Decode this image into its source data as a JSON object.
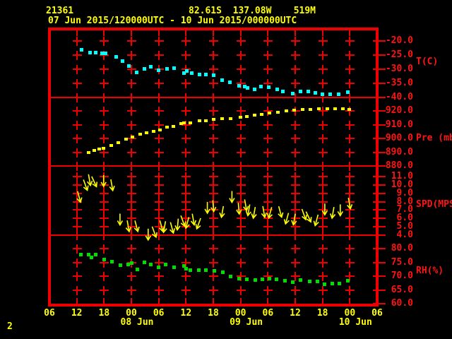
{
  "header": {
    "station_id": "21361",
    "location": "82.61S  137.08W    519M",
    "period": "07 Jun 2015/120000UTC - 10 Jun 2015/000000UTC"
  },
  "footer": {
    "page_char": "2"
  },
  "colors": {
    "background": "#000000",
    "frame_red": "#ee0000",
    "label_red": "#ff1414",
    "text_yellow": "#ffff00",
    "temperature_cyan": "#00ffff",
    "pressure_yellow": "#ffff00",
    "wind_yellow": "#ffff00",
    "humidity_green": "#00dd00"
  },
  "x_axis": {
    "hour_labels": [
      "06",
      "12",
      "18",
      "00",
      "06",
      "12",
      "18",
      "00",
      "06",
      "12",
      "18",
      "00",
      "06"
    ],
    "date_labels": [
      {
        "text": "08 Jun",
        "grid_index": 3
      },
      {
        "text": "09 Jun",
        "grid_index": 7
      },
      {
        "text": "10 Jun",
        "grid_index": 11
      }
    ],
    "range_hours": [
      0,
      72
    ],
    "start": "06UTC 07 Jun 2015",
    "end": "06UTC 10 Jun 2015"
  },
  "chart_data": [
    {
      "type": "scatter",
      "panel": "temperature",
      "ylabel": "T(C)",
      "tick_labels": [
        "-20.0",
        "-25.0",
        "-30.0",
        "-35.0",
        "-40.0"
      ],
      "tick_values": [
        -20,
        -25,
        -30,
        -35,
        -40
      ],
      "series": [
        {
          "name": "temperature_C",
          "marker": "square",
          "color": "#00ffff",
          "points": [
            [
              7.1,
              -23.0
            ],
            [
              8.9,
              -24.0
            ],
            [
              10.2,
              -24.0
            ],
            [
              11.6,
              -24.3
            ],
            [
              12.4,
              -24.3
            ],
            [
              14.7,
              -25.5
            ],
            [
              16.1,
              -27.0
            ],
            [
              17.5,
              -28.8
            ],
            [
              19.1,
              -31.0
            ],
            [
              20.9,
              -29.8
            ],
            [
              22.3,
              -29.1
            ],
            [
              23.9,
              -30.3
            ],
            [
              25.8,
              -29.8
            ],
            [
              27.4,
              -29.5
            ],
            [
              29.5,
              -31.3
            ],
            [
              30.2,
              -30.5
            ],
            [
              31.2,
              -31.3
            ],
            [
              32.9,
              -31.8
            ],
            [
              34.3,
              -31.8
            ],
            [
              36.0,
              -32.0
            ],
            [
              37.9,
              -33.8
            ],
            [
              39.7,
              -34.5
            ],
            [
              41.6,
              -35.9
            ],
            [
              42.9,
              -36.2
            ],
            [
              43.6,
              -36.6
            ],
            [
              45.0,
              -37.1
            ],
            [
              46.5,
              -36.1
            ],
            [
              48.2,
              -36.3
            ],
            [
              50.0,
              -37.1
            ],
            [
              51.3,
              -37.8
            ],
            [
              53.4,
              -38.6
            ],
            [
              55.2,
              -37.9
            ],
            [
              56.8,
              -37.9
            ],
            [
              58.4,
              -38.4
            ],
            [
              60.0,
              -38.8
            ],
            [
              61.7,
              -38.9
            ],
            [
              63.5,
              -38.8
            ],
            [
              65.5,
              -38.1
            ]
          ]
        }
      ]
    },
    {
      "type": "scatter",
      "panel": "pressure",
      "ylabel": "Pre (mb)",
      "tick_labels": [
        "920.0",
        "910.0",
        "900.0",
        "890.0",
        "880.0"
      ],
      "tick_values": [
        920,
        910,
        900,
        890,
        880
      ],
      "series": [
        {
          "name": "pressure_mb",
          "marker": "square",
          "color": "#ffff00",
          "points": [
            [
              8.6,
              889.9
            ],
            [
              9.9,
              891.3
            ],
            [
              11.0,
              892.2
            ],
            [
              11.9,
              892.7
            ],
            [
              13.5,
              894.7
            ],
            [
              15.1,
              896.8
            ],
            [
              16.8,
              899.7
            ],
            [
              18.2,
              900.8
            ],
            [
              19.9,
              903.3
            ],
            [
              21.3,
              904.3
            ],
            [
              22.9,
              905.2
            ],
            [
              24.3,
              906.3
            ],
            [
              25.8,
              908.0
            ],
            [
              27.3,
              908.8
            ],
            [
              28.9,
              910.7
            ],
            [
              29.6,
              911.3
            ],
            [
              30.9,
              911.3
            ],
            [
              33.0,
              912.7
            ],
            [
              34.4,
              913.0
            ],
            [
              36.0,
              913.9
            ],
            [
              38.0,
              914.5
            ],
            [
              39.8,
              914.6
            ],
            [
              41.9,
              915.3
            ],
            [
              43.3,
              916.1
            ],
            [
              45.0,
              916.8
            ],
            [
              46.7,
              917.4
            ],
            [
              48.4,
              918.3
            ],
            [
              50.2,
              919.1
            ],
            [
              52.1,
              919.8
            ],
            [
              53.8,
              920.3
            ],
            [
              55.6,
              920.8
            ],
            [
              57.4,
              921.1
            ],
            [
              59.2,
              921.5
            ],
            [
              61.0,
              921.6
            ],
            [
              62.8,
              921.5
            ],
            [
              64.5,
              921.5
            ],
            [
              65.9,
              921.1
            ]
          ]
        }
      ]
    },
    {
      "type": "scatter",
      "panel": "wind_speed",
      "ylabel": "SPD(MPS)",
      "tick_labels": [
        "11.0",
        "10.0",
        "9.0",
        "8.0",
        "7.0",
        "6.0",
        "5.0",
        "4.0"
      ],
      "tick_values": [
        11,
        10,
        9,
        8,
        7,
        6,
        5,
        4
      ],
      "series": [
        {
          "name": "wind_speed_mps",
          "marker": "arrow-down",
          "color": "#ffff00",
          "note": "points are [hours, speed_mps, arrow_tilt_deg]",
          "points": [
            [
              6.5,
              8.6,
              -15
            ],
            [
              7.9,
              10.0,
              -20
            ],
            [
              8.8,
              10.6,
              -10
            ],
            [
              9.8,
              10.4,
              -25
            ],
            [
              11.9,
              10.5,
              0
            ],
            [
              13.7,
              10.0,
              -10
            ],
            [
              15.5,
              5.9,
              0
            ],
            [
              17.3,
              5.1,
              -10
            ],
            [
              19.1,
              5.1,
              -15
            ],
            [
              21.7,
              4.1,
              0
            ],
            [
              23.0,
              4.4,
              -20
            ],
            [
              24.6,
              5.1,
              -15
            ],
            [
              25.3,
              5.0,
              10
            ],
            [
              26.9,
              4.9,
              -15
            ],
            [
              28.2,
              5.3,
              5
            ],
            [
              29.3,
              5.7,
              -20
            ],
            [
              30.3,
              5.5,
              15
            ],
            [
              31.6,
              5.9,
              -10
            ],
            [
              32.8,
              5.4,
              20
            ],
            [
              34.7,
              7.3,
              0
            ],
            [
              36.0,
              7.5,
              -5
            ],
            [
              38.0,
              6.8,
              10
            ],
            [
              40.1,
              8.6,
              0
            ],
            [
              41.6,
              7.2,
              -5
            ],
            [
              43.1,
              7.6,
              -10
            ],
            [
              43.8,
              7.0,
              10
            ],
            [
              45.0,
              6.7,
              10
            ],
            [
              47.1,
              6.8,
              -10
            ],
            [
              48.5,
              6.7,
              15
            ],
            [
              50.7,
              6.8,
              -15
            ],
            [
              52.2,
              6.0,
              15
            ],
            [
              53.8,
              5.9,
              10
            ],
            [
              55.9,
              6.5,
              -20
            ],
            [
              56.9,
              6.2,
              -25
            ],
            [
              58.7,
              5.8,
              15
            ],
            [
              60.5,
              7.1,
              0
            ],
            [
              62.3,
              6.7,
              10
            ],
            [
              63.9,
              7.0,
              0
            ],
            [
              65.9,
              7.8,
              -10
            ]
          ]
        }
      ]
    },
    {
      "type": "scatter",
      "panel": "relative_humidity",
      "ylabel": "RH(%)",
      "tick_labels": [
        "80.0",
        "75.0",
        "70.0",
        "65.0",
        "60.0"
      ],
      "tick_values": [
        80,
        75,
        70,
        65,
        60
      ],
      "series": [
        {
          "name": "relative_humidity_pct",
          "marker": "square",
          "color": "#00dd00",
          "points": [
            [
              6.9,
              77.8
            ],
            [
              8.6,
              77.8
            ],
            [
              9.3,
              76.7
            ],
            [
              10.2,
              77.8
            ],
            [
              12.0,
              76.1
            ],
            [
              13.7,
              75.2
            ],
            [
              15.6,
              74.0
            ],
            [
              17.3,
              74.2
            ],
            [
              18.0,
              74.8
            ],
            [
              19.3,
              72.5
            ],
            [
              20.9,
              75.0
            ],
            [
              22.2,
              74.2
            ],
            [
              23.9,
              73.3
            ],
            [
              25.6,
              74.2
            ],
            [
              27.4,
              73.3
            ],
            [
              29.6,
              73.6
            ],
            [
              30.0,
              72.6
            ],
            [
              31.0,
              72.1
            ],
            [
              32.8,
              72.3
            ],
            [
              34.3,
              72.3
            ],
            [
              36.2,
              71.9
            ],
            [
              38.1,
              71.3
            ],
            [
              39.8,
              70.0
            ],
            [
              41.6,
              69.0
            ],
            [
              43.4,
              68.8
            ],
            [
              45.3,
              68.5
            ],
            [
              46.8,
              68.9
            ],
            [
              48.4,
              69.0
            ],
            [
              49.9,
              68.8
            ],
            [
              51.7,
              68.3
            ],
            [
              53.5,
              67.7
            ],
            [
              55.2,
              68.5
            ],
            [
              57.2,
              68.2
            ],
            [
              58.9,
              68.2
            ],
            [
              60.4,
              67.1
            ],
            [
              62.1,
              67.3
            ],
            [
              63.7,
              67.3
            ],
            [
              65.6,
              68.3
            ]
          ]
        }
      ]
    }
  ]
}
